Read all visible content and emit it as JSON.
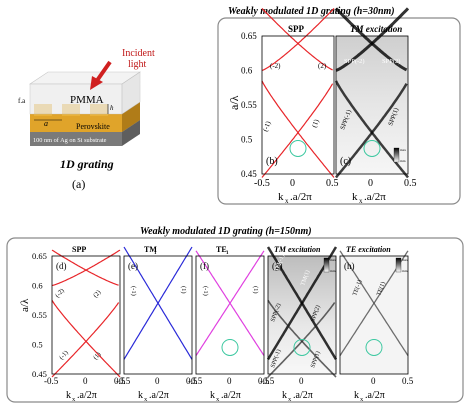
{
  "colors": {
    "frame": "#7f7f7f",
    "red": "#e8262a",
    "blue": "#2a2ad8",
    "magenta": "#e040e0",
    "circle": "#3cc8a0",
    "gold": "#e0a42a",
    "arrow": "#d02020",
    "labelred": "#c01818"
  },
  "panel_a": {
    "incident_label_1": "Incident",
    "incident_label_2": "light",
    "pmma_label": "PMMA",
    "perovskite_label": "Perovskite",
    "substrate_label": "100 nm of Ag on Si substrate",
    "dim_fa": "f.a",
    "dim_a": "a",
    "dim_h": "h",
    "caption": "1D grating",
    "letter": "(a)"
  },
  "top_group": {
    "title": "Weakly modulated 1D grating (h=30nm)",
    "ylabel": "a/λ",
    "yticks": [
      "0.65",
      "0.6",
      "0.55",
      "0.5",
      "0.45"
    ],
    "panel_b": {
      "header": "SPP",
      "letter": "(b)",
      "xticks": [
        "-0.5",
        "0",
        "0.5"
      ],
      "xlabel": "k",
      "xsub": "x",
      "xrest": ".a/2π",
      "labels": [
        "(-2)",
        "(2)",
        "(-1)",
        "(1)"
      ]
    },
    "panel_c": {
      "header": "TM excitation",
      "letter": "(c)",
      "xticks": [
        "0",
        "0.5"
      ],
      "xlabel": "k",
      "xsub": "x",
      "xrest": ".a/2π",
      "labels": [
        "SPP(-2)",
        "SPP(2)",
        "SPP(-1)",
        "SPP(1)"
      ],
      "cbar": [
        "max",
        "min"
      ]
    }
  },
  "bottom_group": {
    "title": "Weakly modulated 1D grating (h=150nm)",
    "ylabel": "a/λ",
    "yticks": [
      "0.65",
      "0.6",
      "0.55",
      "0.5",
      "0.45"
    ],
    "xlabel": "k",
    "xsub": "x",
    "xrest": ".a/2π",
    "panels": [
      {
        "header": "SPP",
        "letter": "(d)",
        "xticks": [
          "-0.5",
          "0",
          "0.5"
        ],
        "labels": [
          "(-2)",
          "(2)",
          "(-1)",
          "(1)"
        ]
      },
      {
        "header": "TM",
        "hsub": "1",
        "letter": "(e)",
        "xticks": [
          "-0.5",
          "0",
          "0.5"
        ],
        "labels": [
          "(-1)",
          "(1)"
        ]
      },
      {
        "header": "TE",
        "hsub": "1",
        "letter": "(f)",
        "xticks": [
          "-0.5",
          "0",
          "0.5"
        ],
        "labels": [
          "(-1)",
          "(1)"
        ]
      },
      {
        "header": "TM excitation",
        "letter": "(g)",
        "xticks": [
          "-0.5",
          "0"
        ],
        "labels": [
          "TM(-1)",
          "TM(1)",
          "SPP(-2)",
          "SPP(2)",
          "SPP(-1)",
          "SPP(1)"
        ],
        "cbar": [
          "max",
          "min"
        ]
      },
      {
        "header": "TE excitation",
        "letter": "(h)",
        "xticks": [
          "0",
          "0.5"
        ],
        "labels": [
          "TE(-1)",
          "TE(1)"
        ],
        "cbar": [
          "max",
          "min"
        ]
      }
    ]
  }
}
